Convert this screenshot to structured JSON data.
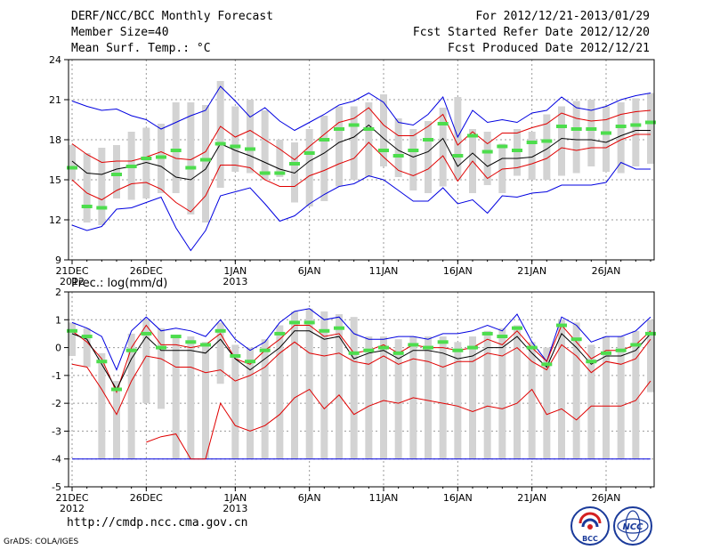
{
  "header": {
    "title": "DERF/NCC/BCC Monthly Forecast",
    "member_size": "Member Size=40",
    "variable": "Mean Surf. Temp.: °C",
    "period": "For 2012/12/21-2013/01/29",
    "started": "Fcst Started Refer Date 2012/12/20",
    "produced": "Fcst Produced Date 2012/12/21"
  },
  "footer": {
    "url": "http://cmdp.ncc.cma.gov.cn",
    "credit": "GrADS: COLA/IGES",
    "logo_left_text": "BCC",
    "logo_right_text": "NCC"
  },
  "colors": {
    "box": "#d3d3d3",
    "median": "#4ddd4d",
    "mean": "#000000",
    "envelope": "#e00000",
    "extreme": "#0000e0"
  },
  "chart_data": [
    {
      "type": "box-whisker-line",
      "title": "Mean Surf. Temp.: °C",
      "ylim": [
        9,
        24
      ],
      "yticks": [
        9,
        12,
        15,
        18,
        21,
        24
      ],
      "xtick_labels": [
        {
          "day": 0,
          "label": "21DEC",
          "sub": "2012"
        },
        {
          "day": 5,
          "label": "26DEC",
          "sub": ""
        },
        {
          "day": 11,
          "label": "1JAN",
          "sub": "2013"
        },
        {
          "day": 16,
          "label": "6JAN",
          "sub": ""
        },
        {
          "day": 21,
          "label": "11JAN",
          "sub": ""
        },
        {
          "day": 26,
          "label": "16JAN",
          "sub": ""
        },
        {
          "day": 31,
          "label": "21JAN",
          "sub": ""
        },
        {
          "day": 36,
          "label": "26JAN",
          "sub": ""
        }
      ],
      "box_low": [
        15.0,
        11.8,
        11.6,
        13.6,
        13.5,
        13.6,
        14.0,
        14.0,
        12.4,
        11.8,
        14.4,
        15.6,
        15.5,
        15.0,
        15.2,
        13.3,
        13.0,
        13.4,
        14.5,
        15.0,
        15.2,
        16.0,
        15.2,
        14.2,
        14.0,
        14.5,
        15.0,
        14.0,
        14.6,
        14.0,
        15.3,
        15.0,
        15.0,
        15.3,
        15.5,
        16.0,
        15.6,
        15.5,
        16.0,
        16.2
      ],
      "box_high": [
        17.6,
        17.0,
        17.4,
        17.6,
        18.6,
        18.9,
        19.2,
        20.8,
        20.8,
        20.6,
        22.4,
        20.5,
        21.0,
        20.2,
        18.0,
        17.8,
        18.8,
        19.8,
        20.5,
        20.5,
        20.8,
        21.4,
        19.6,
        18.8,
        19.4,
        20.4,
        21.2,
        18.8,
        18.6,
        17.7,
        18.8,
        18.6,
        19.9,
        20.5,
        20.9,
        21.0,
        20.5,
        20.8,
        21.1,
        21.5
      ],
      "median": [
        15.9,
        13.0,
        12.9,
        15.4,
        16.0,
        16.6,
        16.7,
        17.2,
        15.9,
        16.5,
        17.7,
        17.5,
        17.3,
        15.5,
        15.5,
        16.2,
        17.0,
        18.0,
        18.8,
        19.1,
        18.8,
        17.2,
        16.8,
        17.2,
        18.0,
        19.2,
        16.8,
        18.3,
        17.1,
        17.5,
        17.2,
        17.8,
        17.9,
        19.0,
        18.8,
        18.8,
        18.5,
        19.0,
        19.1,
        19.3
      ],
      "mean": [
        16.4,
        15.5,
        15.4,
        15.8,
        16.0,
        16.3,
        16.0,
        15.2,
        15.0,
        15.8,
        17.7,
        17.2,
        16.8,
        16.3,
        15.8,
        15.5,
        16.4,
        17.0,
        17.8,
        18.2,
        19.1,
        18.1,
        17.2,
        16.7,
        17.1,
        18.1,
        16.0,
        17.0,
        16.0,
        16.6,
        16.6,
        16.7,
        17.3,
        18.1,
        18.0,
        18.0,
        17.8,
        18.3,
        18.7,
        18.7
      ],
      "upper_env": [
        17.7,
        16.9,
        16.3,
        16.4,
        16.4,
        16.7,
        17.1,
        16.6,
        16.5,
        17.1,
        19.0,
        18.2,
        18.7,
        18.0,
        17.3,
        16.5,
        17.5,
        18.4,
        19.3,
        19.6,
        20.4,
        19.1,
        18.3,
        18.3,
        19.0,
        19.9,
        17.6,
        18.6,
        17.7,
        18.5,
        18.5,
        18.9,
        19.2,
        20.0,
        19.6,
        19.4,
        19.5,
        19.9,
        20.1,
        20.2
      ],
      "lower_env": [
        15.0,
        14.0,
        13.5,
        14.2,
        14.7,
        14.8,
        14.3,
        13.3,
        12.6,
        13.8,
        16.1,
        16.1,
        15.9,
        15.0,
        14.5,
        14.5,
        15.3,
        15.7,
        16.2,
        16.6,
        17.8,
        16.7,
        15.7,
        15.3,
        15.8,
        16.8,
        14.9,
        16.4,
        15.1,
        15.8,
        15.9,
        16.2,
        16.6,
        17.4,
        17.2,
        17.4,
        17.4,
        18.0,
        18.4,
        18.4
      ],
      "max": [
        20.9,
        20.5,
        20.2,
        20.3,
        19.8,
        19.5,
        18.8,
        19.3,
        19.8,
        20.2,
        22.0,
        20.9,
        19.7,
        20.4,
        19.4,
        18.7,
        19.3,
        19.9,
        20.6,
        20.9,
        21.5,
        20.8,
        19.3,
        19.1,
        19.9,
        21.2,
        18.2,
        20.2,
        19.3,
        19.5,
        19.3,
        20.0,
        20.2,
        21.2,
        20.4,
        20.2,
        20.5,
        21.0,
        21.3,
        21.5
      ],
      "min": [
        11.6,
        11.2,
        11.5,
        12.8,
        12.9,
        13.3,
        13.7,
        11.4,
        9.7,
        11.2,
        13.8,
        14.1,
        14.4,
        13.2,
        11.9,
        12.3,
        13.2,
        13.9,
        14.5,
        14.7,
        15.3,
        15.0,
        14.2,
        13.4,
        13.4,
        14.4,
        13.2,
        13.5,
        12.5,
        13.8,
        13.7,
        14.0,
        14.1,
        14.6,
        14.6,
        14.6,
        14.8,
        16.3,
        15.8,
        15.8
      ]
    },
    {
      "type": "box-whisker-line",
      "title": "Prec.: log(mm/d)",
      "ylim": [
        -5,
        2
      ],
      "yticks": [
        -5,
        -4,
        -3,
        -2,
        -1,
        0,
        1,
        2
      ],
      "xtick_labels": [
        {
          "day": 0,
          "label": "21DEC",
          "sub": "2012"
        },
        {
          "day": 5,
          "label": "26DEC",
          "sub": ""
        },
        {
          "day": 11,
          "label": "1JAN",
          "sub": "2013"
        },
        {
          "day": 16,
          "label": "6JAN",
          "sub": ""
        },
        {
          "day": 21,
          "label": "11JAN",
          "sub": ""
        },
        {
          "day": 26,
          "label": "16JAN",
          "sub": ""
        },
        {
          "day": 31,
          "label": "21JAN",
          "sub": ""
        },
        {
          "day": 36,
          "label": "26JAN",
          "sub": ""
        }
      ],
      "box_low": [
        -0.3,
        -0.7,
        -4.0,
        -4.0,
        -4.0,
        -2.0,
        -2.2,
        -4.0,
        -4.0,
        -4.0,
        -1.3,
        -4.0,
        -4.0,
        -4.0,
        -4.0,
        -4.0,
        -4.0,
        -4.0,
        -4.0,
        -4.0,
        -4.0,
        -4.0,
        -4.0,
        -4.0,
        -4.0,
        -4.0,
        -4.0,
        -4.0,
        -4.0,
        -4.0,
        -4.0,
        -4.0,
        -4.0,
        -4.0,
        -4.0,
        -4.0,
        -4.0,
        -4.0,
        -4.0,
        -1.6
      ],
      "box_high": [
        0.9,
        0.7,
        -0.2,
        -1.2,
        0.5,
        1.0,
        0.7,
        0.4,
        0.4,
        0.2,
        0.9,
        0.1,
        0.0,
        0.3,
        0.8,
        1.3,
        1.4,
        1.3,
        1.2,
        1.1,
        0.4,
        0.4,
        0.3,
        0.4,
        0.4,
        0.4,
        0.2,
        0.4,
        0.6,
        0.7,
        0.8,
        0.2,
        0.0,
        1.0,
        0.9,
        0.1,
        0.4,
        0.4,
        0.6,
        1.0
      ],
      "median": [
        0.6,
        0.4,
        -0.5,
        -1.5,
        -0.1,
        0.5,
        0.0,
        0.4,
        0.2,
        0.1,
        0.6,
        -0.3,
        -0.5,
        -0.1,
        0.5,
        0.9,
        0.9,
        0.6,
        0.7,
        -0.2,
        -0.1,
        0.0,
        -0.2,
        0.1,
        0.0,
        0.2,
        -0.1,
        0.0,
        0.5,
        0.4,
        0.7,
        0.0,
        -0.6,
        0.8,
        0.3,
        -0.5,
        -0.2,
        -0.1,
        0.1,
        0.5
      ],
      "mean": [
        0.5,
        0.3,
        -0.6,
        -1.5,
        -0.4,
        0.4,
        -0.1,
        -0.1,
        -0.1,
        -0.2,
        0.3,
        -0.4,
        -0.8,
        -0.4,
        0.0,
        0.6,
        0.6,
        0.3,
        0.4,
        -0.4,
        -0.2,
        -0.1,
        -0.4,
        -0.1,
        -0.1,
        -0.2,
        -0.4,
        -0.3,
        0.0,
        0.0,
        0.4,
        -0.2,
        -0.7,
        0.5,
        0.0,
        -0.6,
        -0.3,
        -0.3,
        -0.1,
        0.5
      ],
      "upper_env": [
        0.6,
        0.2,
        -0.4,
        -1.6,
        0.0,
        0.8,
        0.1,
        0.1,
        0.0,
        0.1,
        0.5,
        -0.4,
        -0.6,
        -0.1,
        0.3,
        0.8,
        0.8,
        0.4,
        0.5,
        -0.2,
        -0.1,
        0.1,
        -0.2,
        0.1,
        0.0,
        0.0,
        -0.1,
        0.0,
        0.3,
        0.1,
        0.6,
        0.0,
        -0.5,
        0.8,
        0.2,
        -0.4,
        -0.1,
        -0.1,
        0.1,
        0.6
      ],
      "lower_env": [
        -0.6,
        -0.7,
        -1.5,
        -2.4,
        -1.2,
        -0.3,
        -0.4,
        -0.7,
        -0.7,
        -0.9,
        -0.8,
        -1.2,
        -1.0,
        -0.7,
        -0.2,
        0.2,
        -0.2,
        -0.3,
        -0.2,
        -0.5,
        -0.6,
        -0.3,
        -0.6,
        -0.4,
        -0.5,
        -0.7,
        -0.5,
        -0.5,
        -0.2,
        -0.3,
        0.0,
        -0.5,
        -0.8,
        0.1,
        -0.3,
        -0.9,
        -0.5,
        -0.6,
        -0.4,
        0.3
      ],
      "max": [
        0.9,
        0.7,
        0.4,
        -0.8,
        0.6,
        1.1,
        0.6,
        0.7,
        0.6,
        0.4,
        1.0,
        0.3,
        -0.1,
        0.2,
        0.9,
        1.3,
        1.4,
        1.0,
        1.1,
        0.5,
        0.3,
        0.3,
        0.4,
        0.4,
        0.3,
        0.5,
        0.5,
        0.6,
        0.8,
        0.6,
        1.2,
        0.2,
        -0.5,
        1.1,
        0.8,
        0.2,
        0.4,
        0.4,
        0.6,
        1.1
      ],
      "min": [
        -4.0,
        -4.0,
        -4.0,
        -4.0,
        -4.0,
        -4.0,
        -4.0,
        -4.0,
        -4.0,
        -4.0,
        -4.0,
        -4.0,
        -4.0,
        -4.0,
        -4.0,
        -4.0,
        -4.0,
        -4.0,
        -4.0,
        -4.0,
        -4.0,
        -4.0,
        -4.0,
        -4.0,
        -4.0,
        -4.0,
        -4.0,
        -4.0,
        -4.0,
        -4.0,
        -4.0,
        -4.0,
        -4.0,
        -4.0,
        -4.0,
        -4.0,
        -4.0,
        -4.0,
        -4.0,
        -4.0
      ],
      "low_line": [
        null,
        null,
        null,
        null,
        null,
        -3.4,
        -3.2,
        -3.1,
        -4.0,
        -4.0,
        -2.0,
        -2.8,
        -3.0,
        -2.8,
        -2.4,
        -1.8,
        -1.5,
        -2.2,
        -1.7,
        -2.4,
        -2.1,
        -1.9,
        -2.0,
        -1.8,
        -1.9,
        -2.0,
        -2.1,
        -2.3,
        -2.1,
        -2.2,
        -2.0,
        -1.5,
        -2.4,
        -2.2,
        -2.6,
        -2.1,
        -2.1,
        -2.1,
        -1.9,
        -1.2
      ]
    }
  ]
}
